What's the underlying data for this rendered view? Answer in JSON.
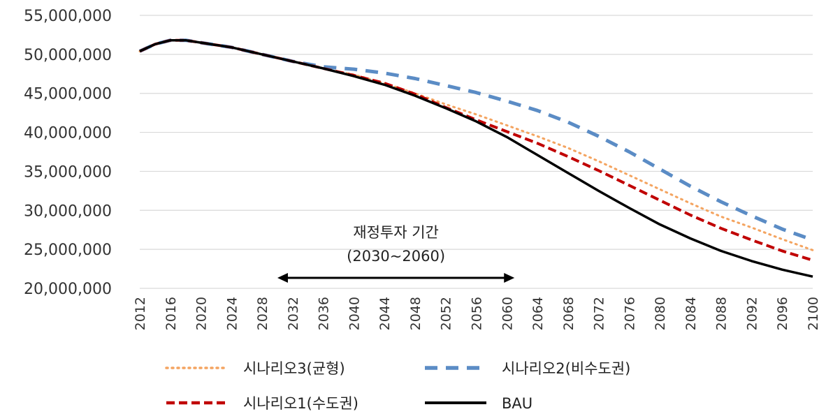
{
  "chart_data": {
    "type": "line",
    "title": "",
    "xlabel": "",
    "ylabel": "",
    "ylim": [
      20000000,
      55000000
    ],
    "yticks": [
      20000000,
      25000000,
      30000000,
      35000000,
      40000000,
      45000000,
      50000000,
      55000000
    ],
    "ytick_labels": [
      "20,000,000",
      "25,000,000",
      "30,000,000",
      "35,000,000",
      "40,000,000",
      "45,000,000",
      "50,000,000",
      "55,000,000"
    ],
    "xlim": [
      2012,
      2100
    ],
    "xticks": [
      2012,
      2016,
      2020,
      2024,
      2028,
      2032,
      2036,
      2040,
      2044,
      2048,
      2052,
      2056,
      2060,
      2064,
      2068,
      2072,
      2076,
      2080,
      2084,
      2088,
      2092,
      2096,
      2100
    ],
    "grid": "horizontal",
    "legend_position": "bottom",
    "annotation": {
      "line1": "재정투자 기간",
      "line2": "(2030~2060)",
      "range": [
        2030,
        2061
      ]
    },
    "series": [
      {
        "name": "시나리오3(균형)",
        "color": "#F4A460",
        "style": "dotted",
        "points": [
          [
            2012,
            50400000
          ],
          [
            2014,
            51300000
          ],
          [
            2016,
            51800000
          ],
          [
            2018,
            51800000
          ],
          [
            2020,
            51500000
          ],
          [
            2024,
            50900000
          ],
          [
            2028,
            50000000
          ],
          [
            2032,
            49100000
          ],
          [
            2036,
            48200000
          ],
          [
            2040,
            47400000
          ],
          [
            2044,
            46300000
          ],
          [
            2048,
            45000000
          ],
          [
            2052,
            43600000
          ],
          [
            2056,
            42300000
          ],
          [
            2060,
            40900000
          ],
          [
            2064,
            39500000
          ],
          [
            2068,
            38000000
          ],
          [
            2072,
            36300000
          ],
          [
            2076,
            34500000
          ],
          [
            2080,
            32700000
          ],
          [
            2084,
            30900000
          ],
          [
            2088,
            29200000
          ],
          [
            2092,
            27800000
          ],
          [
            2096,
            26300000
          ],
          [
            2100,
            24900000
          ]
        ]
      },
      {
        "name": "시나리오2(비수도권)",
        "color": "#5B8CC5",
        "style": "long-dash",
        "points": [
          [
            2012,
            50400000
          ],
          [
            2014,
            51300000
          ],
          [
            2016,
            51800000
          ],
          [
            2018,
            51800000
          ],
          [
            2020,
            51500000
          ],
          [
            2024,
            50900000
          ],
          [
            2028,
            50000000
          ],
          [
            2032,
            49100000
          ],
          [
            2036,
            48400000
          ],
          [
            2040,
            48100000
          ],
          [
            2044,
            47600000
          ],
          [
            2048,
            46900000
          ],
          [
            2052,
            46000000
          ],
          [
            2056,
            45100000
          ],
          [
            2060,
            44000000
          ],
          [
            2064,
            42800000
          ],
          [
            2068,
            41300000
          ],
          [
            2072,
            39500000
          ],
          [
            2076,
            37500000
          ],
          [
            2080,
            35300000
          ],
          [
            2084,
            33100000
          ],
          [
            2088,
            31100000
          ],
          [
            2092,
            29300000
          ],
          [
            2096,
            27600000
          ],
          [
            2100,
            26200000
          ]
        ]
      },
      {
        "name": "시나리오1(수도권)",
        "color": "#C00000",
        "style": "dashed",
        "points": [
          [
            2012,
            50400000
          ],
          [
            2014,
            51300000
          ],
          [
            2016,
            51800000
          ],
          [
            2018,
            51800000
          ],
          [
            2020,
            51500000
          ],
          [
            2024,
            50900000
          ],
          [
            2028,
            50000000
          ],
          [
            2032,
            49100000
          ],
          [
            2036,
            48200000
          ],
          [
            2040,
            47300000
          ],
          [
            2044,
            46300000
          ],
          [
            2048,
            44900000
          ],
          [
            2052,
            43200000
          ],
          [
            2056,
            41600000
          ],
          [
            2060,
            40100000
          ],
          [
            2064,
            38600000
          ],
          [
            2068,
            36900000
          ],
          [
            2072,
            35100000
          ],
          [
            2076,
            33200000
          ],
          [
            2080,
            31300000
          ],
          [
            2084,
            29400000
          ],
          [
            2088,
            27700000
          ],
          [
            2092,
            26200000
          ],
          [
            2096,
            24800000
          ],
          [
            2100,
            23600000
          ]
        ]
      },
      {
        "name": "BAU",
        "color": "#000000",
        "style": "solid",
        "points": [
          [
            2012,
            50400000
          ],
          [
            2014,
            51300000
          ],
          [
            2016,
            51800000
          ],
          [
            2018,
            51800000
          ],
          [
            2020,
            51500000
          ],
          [
            2024,
            50900000
          ],
          [
            2028,
            50000000
          ],
          [
            2032,
            49100000
          ],
          [
            2036,
            48200000
          ],
          [
            2040,
            47200000
          ],
          [
            2044,
            46100000
          ],
          [
            2048,
            44700000
          ],
          [
            2052,
            43100000
          ],
          [
            2056,
            41400000
          ],
          [
            2060,
            39400000
          ],
          [
            2064,
            37100000
          ],
          [
            2068,
            34800000
          ],
          [
            2072,
            32500000
          ],
          [
            2076,
            30300000
          ],
          [
            2080,
            28200000
          ],
          [
            2084,
            26400000
          ],
          [
            2088,
            24800000
          ],
          [
            2092,
            23500000
          ],
          [
            2096,
            22400000
          ],
          [
            2100,
            21500000
          ]
        ]
      }
    ]
  }
}
